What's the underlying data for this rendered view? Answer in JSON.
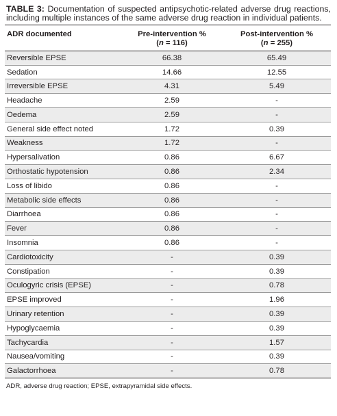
{
  "caption": {
    "label": "TABLE 3:",
    "text": "Documentation of suspected antipsychotic-related adverse drug reactions, including multiple instances of the same adverse drug reaction in individual patients."
  },
  "table": {
    "headers": {
      "adr": "ADR documented",
      "pre": {
        "title": "Pre-intervention %",
        "n_open": "(",
        "n_var": "n",
        "n_value": " = 116)"
      },
      "post": {
        "title": "Post-intervention %",
        "n_open": "(",
        "n_var": "n",
        "n_value": " = 255)"
      }
    },
    "rows": [
      {
        "adr": "Reversible EPSE",
        "pre": "66.38",
        "post": "65.49"
      },
      {
        "adr": "Sedation",
        "pre": "14.66",
        "post": "12.55"
      },
      {
        "adr": "Irreversible EPSE",
        "pre": "4.31",
        "post": "5.49"
      },
      {
        "adr": "Headache",
        "pre": "2.59",
        "post": "-"
      },
      {
        "adr": "Oedema",
        "pre": "2.59",
        "post": "-"
      },
      {
        "adr": "General side effect noted",
        "pre": "1.72",
        "post": "0.39"
      },
      {
        "adr": "Weakness",
        "pre": "1.72",
        "post": "-"
      },
      {
        "adr": "Hypersalivation",
        "pre": "0.86",
        "post": "6.67"
      },
      {
        "adr": "Orthostatic hypotension",
        "pre": "0.86",
        "post": "2.34"
      },
      {
        "adr": "Loss of libido",
        "pre": "0.86",
        "post": "-"
      },
      {
        "adr": "Metabolic side effects",
        "pre": "0.86",
        "post": "-"
      },
      {
        "adr": "Diarrhoea",
        "pre": "0.86",
        "post": "-"
      },
      {
        "adr": "Fever",
        "pre": "0.86",
        "post": "-"
      },
      {
        "adr": "Insomnia",
        "pre": "0.86",
        "post": "-"
      },
      {
        "adr": "Cardiotoxicity",
        "pre": "-",
        "post": "0.39"
      },
      {
        "adr": "Constipation",
        "pre": "-",
        "post": "0.39"
      },
      {
        "adr": "Oculogyric crisis (EPSE)",
        "pre": "-",
        "post": "0.78"
      },
      {
        "adr": "EPSE improved",
        "pre": "-",
        "post": "1.96"
      },
      {
        "adr": "Urinary retention",
        "pre": "-",
        "post": "0.39"
      },
      {
        "adr": "Hypoglycaemia",
        "pre": "-",
        "post": "0.39"
      },
      {
        "adr": "Tachycardia",
        "pre": "-",
        "post": "1.57"
      },
      {
        "adr": "Nausea/vomiting",
        "pre": "-",
        "post": "0.39"
      },
      {
        "adr": "Galactorrhoea",
        "pre": "-",
        "post": "0.78"
      }
    ]
  },
  "footnote": "ADR, adverse drug reaction; EPSE, extrapyramidal side effects."
}
